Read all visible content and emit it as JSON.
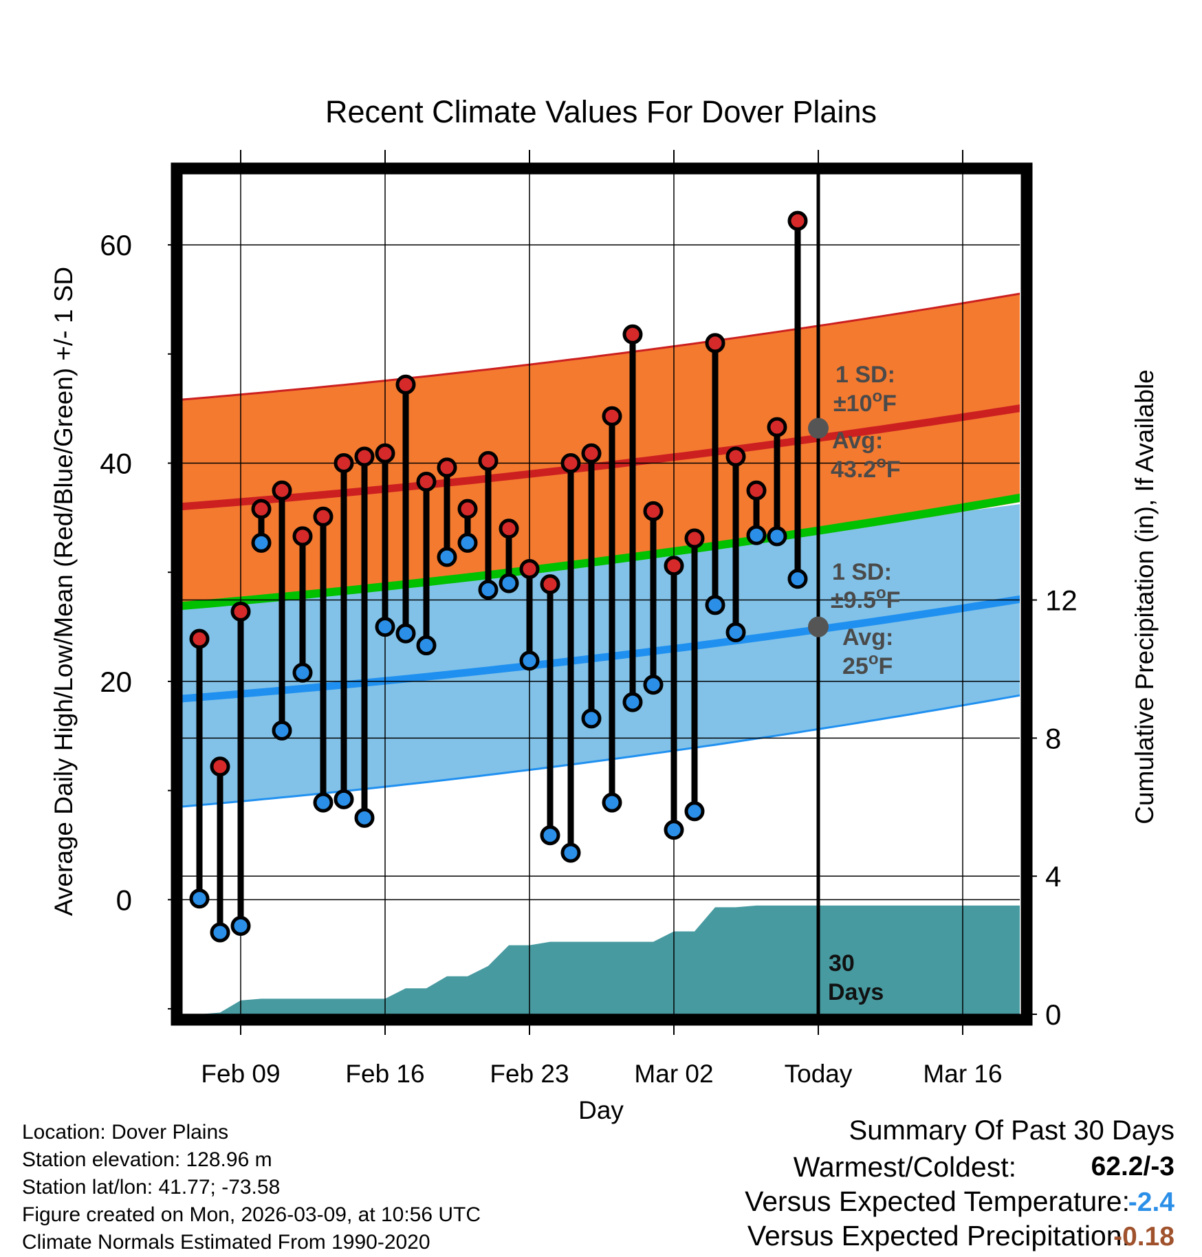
{
  "chart_data": {
    "type": "line",
    "title": "Recent Climate Values For Dover Plains",
    "xlabel": "Day",
    "ylabel": "Average Daily High/Low/Mean (Red/Blue/Green) +/- 1 SD",
    "y2label": "Cumulative Precipitation (in), If Available",
    "ylim": [
      -10.5,
      67
    ],
    "y2lim": [
      0,
      24.5
    ],
    "x_ticks": [
      "Feb 09",
      "Feb 16",
      "Feb 23",
      "Mar 02",
      "Today",
      "Mar 16"
    ],
    "y_ticks": [
      0,
      20,
      40,
      60
    ],
    "y2_ticks": [
      0,
      4,
      8,
      12
    ],
    "days": [
      "Feb 07",
      "Feb 08",
      "Feb 09",
      "Feb 10",
      "Feb 11",
      "Feb 12",
      "Feb 13",
      "Feb 14",
      "Feb 15",
      "Feb 16",
      "Feb 17",
      "Feb 18",
      "Feb 19",
      "Feb 20",
      "Feb 21",
      "Feb 22",
      "Feb 23",
      "Feb 24",
      "Feb 25",
      "Feb 26",
      "Feb 27",
      "Feb 28",
      "Mar 01",
      "Mar 02",
      "Mar 03",
      "Mar 04",
      "Mar 05",
      "Mar 06",
      "Mar 07",
      "Mar 08"
    ],
    "daily_high": [
      23.9,
      12.2,
      26.4,
      35.8,
      37.5,
      33.3,
      35.1,
      40.0,
      40.6,
      40.9,
      47.2,
      38.3,
      39.6,
      35.8,
      40.2,
      34.0,
      30.3,
      28.9,
      40.0,
      40.9,
      44.3,
      51.8,
      35.6,
      30.6,
      33.1,
      51.0,
      40.6,
      37.5,
      43.3,
      62.2
    ],
    "daily_low": [
      0.1,
      -3.0,
      -2.4,
      32.7,
      15.5,
      20.8,
      8.9,
      9.2,
      7.5,
      25.0,
      24.4,
      23.3,
      31.4,
      32.7,
      28.4,
      29.0,
      21.9,
      5.9,
      4.3,
      16.6,
      8.9,
      18.1,
      19.7,
      6.4,
      8.1,
      27.0,
      24.5,
      33.4,
      33.3,
      29.4
    ],
    "normal_high_mean": [
      36.0,
      45.1
    ],
    "normal_high_band": [
      [
        26.6,
        45.8
      ],
      [
        36.5,
        55.6
      ]
    ],
    "normal_low_mean": [
      18.4,
      27.6
    ],
    "normal_low_band": [
      [
        8.5,
        28.8
      ],
      [
        18.8,
        36.3
      ]
    ],
    "normal_mean_line": [
      26.9,
      36.9
    ],
    "precip_cumulative": [
      0,
      0,
      0.05,
      0.4,
      0.45,
      0.45,
      0.45,
      0.45,
      0.45,
      0.45,
      0.45,
      0.75,
      0.75,
      1.1,
      1.1,
      1.4,
      2.0,
      2.0,
      2.1,
      2.1,
      2.1,
      2.1,
      2.1,
      2.1,
      2.4,
      2.4,
      3.1,
      3.1,
      3.15,
      3.15,
      3.15,
      3.15,
      3.15,
      3.15,
      3.15,
      3.15,
      3.15,
      3.15,
      3.15,
      3.15,
      3.15,
      3.15
    ],
    "annotations": {
      "high_sd_line1": "1 SD:",
      "high_sd_value": "±10",
      "high_avg_label": "Avg:",
      "high_avg_value": "43.2",
      "low_sd_line1": "1 SD:",
      "low_sd_value": "±9.5",
      "low_avg_label": "Avg:",
      "low_avg_value": "25",
      "deg_symbol": "o",
      "unit": "F",
      "window_line1": "30",
      "window_line2": "Days"
    },
    "today_high_avg": 43.2,
    "today_low_avg": 25
  },
  "station": {
    "location": "Location: Dover Plains",
    "elevation": "Station elevation: 128.96 m",
    "latlon": "Station lat/lon: 41.77; -73.58",
    "created": "Figure created on Mon, 2026-03-09, at 10:56 UTC",
    "normals": "Climate Normals Estimated From 1990-2020"
  },
  "summary": {
    "title": "Summary Of Past 30 Days",
    "warmest_label": "Warmest/Coldest:",
    "warmest_value": "62.2/-3",
    "temp_label": "Versus Expected Temperature:",
    "temp_value": "-2.4",
    "precip_label": "Versus Expected Precipitation:",
    "precip_value": "-0.18"
  },
  "colors": {
    "high_band": "#f47a30",
    "high_line": "#cc2020",
    "low_band": "#82c2e8",
    "low_line": "#2090f0",
    "mean_line": "#00c000",
    "precip": "#479aa0",
    "dot_high": "#d62a2a",
    "dot_low": "#2b8fe8",
    "annotation": "#4a4a4a",
    "temp_value": "#2b8fe8",
    "precip_value": "#a0522d"
  }
}
